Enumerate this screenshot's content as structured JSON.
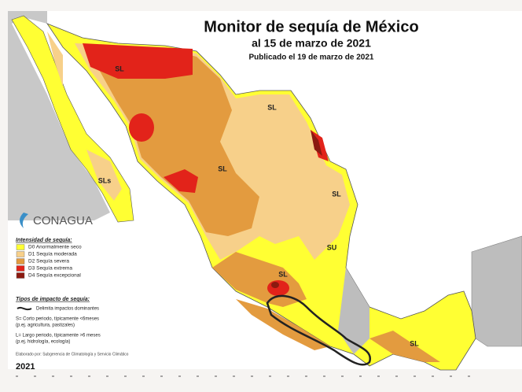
{
  "header": {
    "title": "Monitor de sequía de México",
    "subtitle": "al 15 de marzo de 2021",
    "published": "Publicado el 19 de marzo de 2021"
  },
  "logo": {
    "name": "CONAGUA"
  },
  "legend": {
    "title": "Intensidad de sequía:",
    "items": [
      {
        "label": "D0 Anormalmente seco",
        "color": "#ffff33"
      },
      {
        "label": "D1 Sequía moderada",
        "color": "#f7d08a"
      },
      {
        "label": "D2 Sequía severa",
        "color": "#e39b3f"
      },
      {
        "label": "D3 Sequía extrema",
        "color": "#e2231a"
      },
      {
        "label": "D4 Sequía excepcional",
        "color": "#8b1a10"
      }
    ],
    "impact_title": "Tipos de impacto de sequía:",
    "impact_items": [
      "Delimita impactos dominantes",
      "S= Corto periodo, típicamente <6meses",
      "(p.ej. agricultura, pastizales)",
      "L= Largo periodo, típicamente >6 meses",
      "(p.ej. hidrología, ecología)"
    ],
    "credit": "Elaborado por: Subgerencia de Climatología y Servicio Climático"
  },
  "map_labels": [
    "SL",
    "SL",
    "SL",
    "SL",
    "SLs",
    "SU",
    "SL",
    "SL"
  ],
  "year": "2021"
}
